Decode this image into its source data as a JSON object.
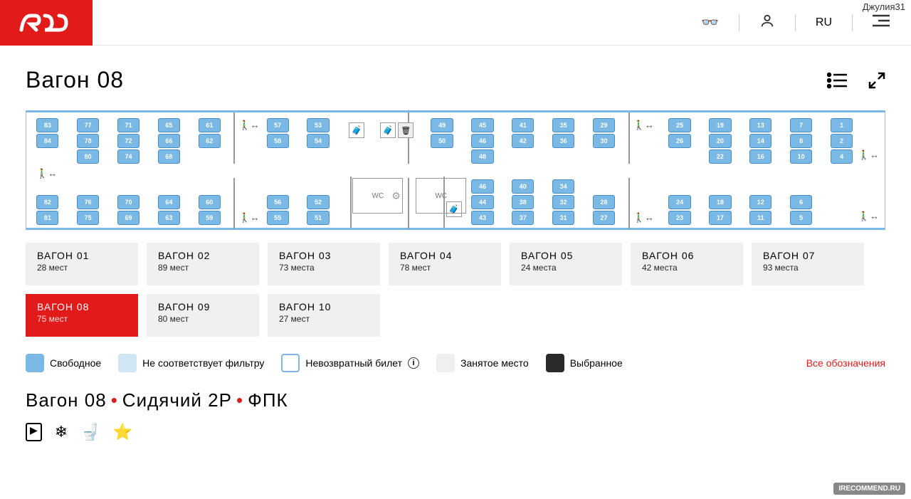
{
  "header": {
    "username": "Джулия31",
    "lang": "RU"
  },
  "title": "Вагон 08",
  "seat_color": "#7ab8e6",
  "seat_border": "#4a8fc4",
  "scheme": {
    "seats": [
      [
        83,
        8,
        8
      ],
      [
        84,
        8,
        30
      ],
      [
        82,
        8,
        116
      ],
      [
        81,
        8,
        138
      ],
      [
        77,
        40,
        8
      ],
      [
        78,
        40,
        30
      ],
      [
        80,
        40,
        52
      ],
      [
        76,
        40,
        116
      ],
      [
        75,
        40,
        138
      ],
      [
        71,
        72,
        8
      ],
      [
        72,
        72,
        30
      ],
      [
        74,
        72,
        52
      ],
      [
        70,
        72,
        116
      ],
      [
        69,
        72,
        138
      ],
      [
        65,
        104,
        8
      ],
      [
        66,
        104,
        30
      ],
      [
        68,
        104,
        52
      ],
      [
        64,
        104,
        116
      ],
      [
        63,
        104,
        138
      ],
      [
        61,
        136,
        8
      ],
      [
        62,
        136,
        30
      ],
      [
        60,
        136,
        116
      ],
      [
        59,
        136,
        138
      ],
      [
        57,
        190,
        8
      ],
      [
        58,
        190,
        30
      ],
      [
        56,
        190,
        116
      ],
      [
        55,
        190,
        138
      ],
      [
        53,
        222,
        8
      ],
      [
        54,
        222,
        30
      ],
      [
        52,
        222,
        116
      ],
      [
        51,
        222,
        138
      ],
      [
        49,
        320,
        8
      ],
      [
        50,
        320,
        30
      ],
      [
        45,
        352,
        8
      ],
      [
        46,
        352,
        30
      ],
      [
        48,
        352,
        52
      ],
      [
        46,
        352,
        94
      ],
      [
        44,
        352,
        116
      ],
      [
        43,
        352,
        138
      ],
      [
        41,
        384,
        8
      ],
      [
        42,
        384,
        30
      ],
      [
        40,
        384,
        94
      ],
      [
        38,
        384,
        116
      ],
      [
        37,
        384,
        138
      ],
      [
        35,
        416,
        8
      ],
      [
        36,
        416,
        30
      ],
      [
        34,
        416,
        94
      ],
      [
        32,
        416,
        116
      ],
      [
        31,
        416,
        138
      ],
      [
        29,
        448,
        8
      ],
      [
        30,
        448,
        30
      ],
      [
        28,
        448,
        116
      ],
      [
        27,
        448,
        138
      ],
      [
        25,
        508,
        8
      ],
      [
        26,
        508,
        30
      ],
      [
        24,
        508,
        116
      ],
      [
        23,
        508,
        138
      ],
      [
        19,
        540,
        8
      ],
      [
        20,
        540,
        30
      ],
      [
        22,
        540,
        52
      ],
      [
        18,
        540,
        116
      ],
      [
        17,
        540,
        138
      ],
      [
        13,
        572,
        8
      ],
      [
        14,
        572,
        30
      ],
      [
        16,
        572,
        52
      ],
      [
        12,
        572,
        116
      ],
      [
        11,
        572,
        138
      ],
      [
        7,
        604,
        8
      ],
      [
        8,
        604,
        30
      ],
      [
        10,
        604,
        52
      ],
      [
        6,
        604,
        116
      ],
      [
        5,
        604,
        138
      ],
      [
        1,
        636,
        8
      ],
      [
        2,
        636,
        30
      ],
      [
        4,
        636,
        52
      ]
    ],
    "walls": [
      [
        164,
        0,
        2,
        72
      ],
      [
        164,
        92,
        2,
        72
      ],
      [
        302,
        0,
        2,
        72
      ],
      [
        302,
        92,
        2,
        72
      ],
      [
        476,
        0,
        2,
        72
      ],
      [
        476,
        92,
        2,
        72
      ],
      [
        256,
        90,
        2,
        72
      ],
      [
        330,
        90,
        2,
        72
      ]
    ],
    "exits": [
      [
        168,
        10
      ],
      [
        168,
        140
      ],
      [
        480,
        10
      ],
      [
        480,
        140
      ],
      [
        8,
        78
      ],
      [
        658,
        52
      ],
      [
        658,
        138
      ]
    ],
    "lug": [
      [
        255,
        14
      ],
      [
        280,
        14
      ],
      [
        332,
        125
      ]
    ],
    "trash": [
      294,
      14
    ],
    "wc": [
      [
        258,
        92,
        "WC"
      ],
      [
        308,
        92,
        "WC"
      ]
    ],
    "gear": [
      284,
      92
    ]
  },
  "cars": [
    {
      "t": "ВАГОН 01",
      "s": "28 мест",
      "a": false
    },
    {
      "t": "ВАГОН 02",
      "s": "89 мест",
      "a": false
    },
    {
      "t": "ВАГОН 03",
      "s": "73 места",
      "a": false
    },
    {
      "t": "ВАГОН 04",
      "s": "78 мест",
      "a": false
    },
    {
      "t": "ВАГОН 05",
      "s": "24 места",
      "a": false
    },
    {
      "t": "ВАГОН 06",
      "s": "42 места",
      "a": false
    },
    {
      "t": "ВАГОН 07",
      "s": "93 места",
      "a": false
    },
    {
      "t": "ВАГОН 08",
      "s": "75 мест",
      "a": true
    },
    {
      "t": "ВАГОН 09",
      "s": "80 мест",
      "a": false
    },
    {
      "t": "ВАГОН 10",
      "s": "27 мест",
      "a": false
    }
  ],
  "legend": [
    {
      "c": "#7ab8e6",
      "b": "#7ab8e6",
      "t": "Свободное"
    },
    {
      "c": "#cfe6f5",
      "b": "#cfe6f5",
      "t": "Не соответствует фильтру"
    },
    {
      "c": "#ffffff",
      "b": "#7ab8e6",
      "t": "Невозвратный билет",
      "info": true
    },
    {
      "c": "#efefef",
      "b": "#efefef",
      "t": "Занятое место"
    },
    {
      "c": "#2a2a2a",
      "b": "#2a2a2a",
      "t": "Выбранное"
    }
  ],
  "legend_all": "Все обозначения",
  "subtitle": {
    "a": "Вагон 08",
    "b": "Сидячий 2Р",
    "c": "ФПК"
  },
  "amenities": [
    "▶",
    "❄",
    "🚽",
    "⭐"
  ],
  "watermark": "IRECOMMEND.RU"
}
